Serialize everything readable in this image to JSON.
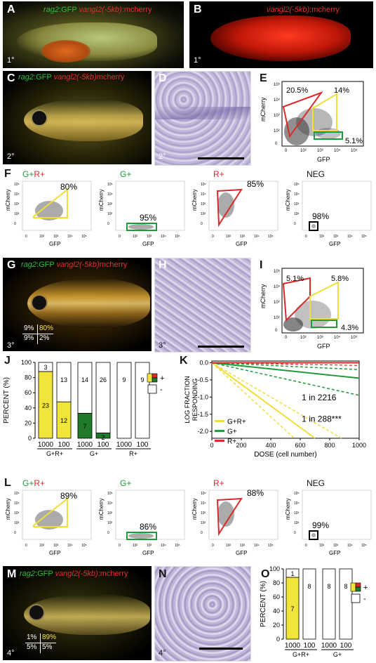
{
  "panels": {
    "A": {
      "letter": "A",
      "label_green": "rag2",
      "label_green2": ":GFP ",
      "label_red": "vangl2(-5kb)",
      "label_red2": ":mcherry",
      "stage": "1°"
    },
    "B": {
      "letter": "B",
      "label_red": "vangl2(-5kb)",
      "label_red2": ":mcherry",
      "stage": "1°"
    },
    "C": {
      "letter": "C",
      "label_green": "rag2",
      "label_green2": ":GFP ",
      "label_red": "vangl2(-5kb)",
      "label_red2": "mcherry",
      "stage": "2°"
    },
    "D": {
      "letter": "D",
      "stage": "2°"
    },
    "E": {
      "letter": "E",
      "gates": [
        "20.5%",
        "14%",
        "5.1%"
      ],
      "ylabel": "mCherry",
      "xlabel": "GFP"
    },
    "F": {
      "letter": "F",
      "subpanels": [
        {
          "title_g": "G+",
          "title_r": "R+",
          "pct": "80%"
        },
        {
          "title_g": "G+",
          "title_r": "",
          "pct": "95%"
        },
        {
          "title_g": "",
          "title_r": "R+",
          "pct": "85%"
        },
        {
          "title_g": "",
          "title_r": "",
          "title_neg": "NEG",
          "pct": "98%"
        }
      ],
      "ylabel": "mCherry",
      "xlabel": "GFP"
    },
    "G": {
      "letter": "G",
      "label_green": "rag2",
      "label_green2": ":GFP ",
      "label_red": "vangl2(-5kb)",
      "label_red2": "mcherry",
      "stage": "3°",
      "quad": {
        "tl": "9%",
        "tr": "80%",
        "bl": "9%",
        "br": "2%"
      }
    },
    "H": {
      "letter": "H",
      "stage": "3°"
    },
    "I": {
      "letter": "I",
      "gates": [
        "5.1%",
        "5.8%",
        "4.3%"
      ],
      "ylabel": "mCherry",
      "xlabel": "GFP"
    },
    "J": {
      "letter": "J"
    },
    "K": {
      "letter": "K"
    },
    "L": {
      "letter": "L",
      "subpanels": [
        {
          "title_g": "G+",
          "title_r": "R+",
          "pct": "89%"
        },
        {
          "title_g": "G+",
          "title_r": "",
          "pct": "86%"
        },
        {
          "title_g": "",
          "title_r": "R+",
          "pct": "88%"
        },
        {
          "title_g": "",
          "title_r": "",
          "title_neg": "NEG",
          "pct": "99%"
        }
      ],
      "ylabel": "mCherry",
      "xlabel": "GFP"
    },
    "M": {
      "letter": "M",
      "label_green": "rag2",
      "label_green2": ":GFP ",
      "label_red": "vangl2(-5kb)",
      "label_red2": ":mcherry",
      "stage": "4°",
      "quad": {
        "tl": "1%",
        "tr": "89%",
        "bl": "5%",
        "br": "5%"
      }
    },
    "N": {
      "letter": "N",
      "stage": "4°"
    },
    "O": {
      "letter": "O"
    }
  },
  "axis_ticks": {
    "y": [
      "10⁵",
      "10⁴",
      "10³",
      "10²",
      "0"
    ],
    "x": [
      "0",
      "10²",
      "10³",
      "10⁴",
      "10⁵"
    ]
  },
  "chart_data": [
    {
      "id": "J",
      "type": "bar",
      "ylabel": "PERCENT (%)",
      "ylim": [
        0,
        100
      ],
      "yticks": [
        "0",
        "20",
        "40",
        "60",
        "80",
        "100"
      ],
      "categories": [
        "1000",
        "100",
        "1000",
        "100",
        "1000",
        "100"
      ],
      "groups": [
        "G+R+",
        "G+",
        "R+"
      ],
      "series": [
        {
          "name": "+",
          "values": [
            88,
            48,
            33,
            7,
            0,
            0
          ]
        },
        {
          "name": "-",
          "values": [
            12,
            52,
            67,
            93,
            100,
            100
          ]
        }
      ],
      "count_pos": [
        "23",
        "12",
        "7",
        "2",
        "",
        ""
      ],
      "count_neg": [
        "3",
        "13",
        "14",
        "26",
        "9",
        "9"
      ],
      "legend": [
        "+",
        "-"
      ]
    },
    {
      "id": "K",
      "type": "line",
      "xlabel": "DOSE (cell number)",
      "ylabel": "LOG FRACTION RESPONDING",
      "xlim": [
        0,
        1000
      ],
      "ylim": [
        -2.2,
        0.05
      ],
      "xticks": [
        "0",
        "200",
        "400",
        "600",
        "800",
        "1000"
      ],
      "yticks": [
        "0.0",
        "-0.5",
        "-1.0",
        "-1.5",
        "-2.0"
      ],
      "series": [
        {
          "name": "G+R+",
          "x": [
            0,
            700
          ],
          "y": [
            0,
            -2.2
          ]
        },
        {
          "name": "G+",
          "x": [
            0,
            1000
          ],
          "y": [
            0,
            -0.45
          ]
        },
        {
          "name": "R+",
          "x": [
            0,
            1000
          ],
          "y": [
            0,
            0
          ]
        }
      ],
      "annotations": [
        "1 in 2216",
        "1 in 288***"
      ],
      "legend": [
        "G+R+",
        "G+",
        "R+"
      ]
    },
    {
      "id": "O",
      "type": "bar",
      "ylabel": "PERCENT (%)",
      "ylim": [
        0,
        100
      ],
      "yticks": [
        "0",
        "20",
        "40",
        "60",
        "80",
        "100"
      ],
      "categories": [
        "1000",
        "100",
        "1000",
        "100"
      ],
      "groups": [
        "G+R+",
        "G+"
      ],
      "series": [
        {
          "name": "+",
          "values": [
            88,
            0,
            0,
            0
          ]
        },
        {
          "name": "-",
          "values": [
            12,
            100,
            100,
            100
          ]
        }
      ],
      "count_pos": [
        "7",
        "",
        "",
        ""
      ],
      "count_neg": [
        "1",
        "8",
        "8",
        "8"
      ],
      "legend": [
        "+",
        "-"
      ]
    }
  ]
}
